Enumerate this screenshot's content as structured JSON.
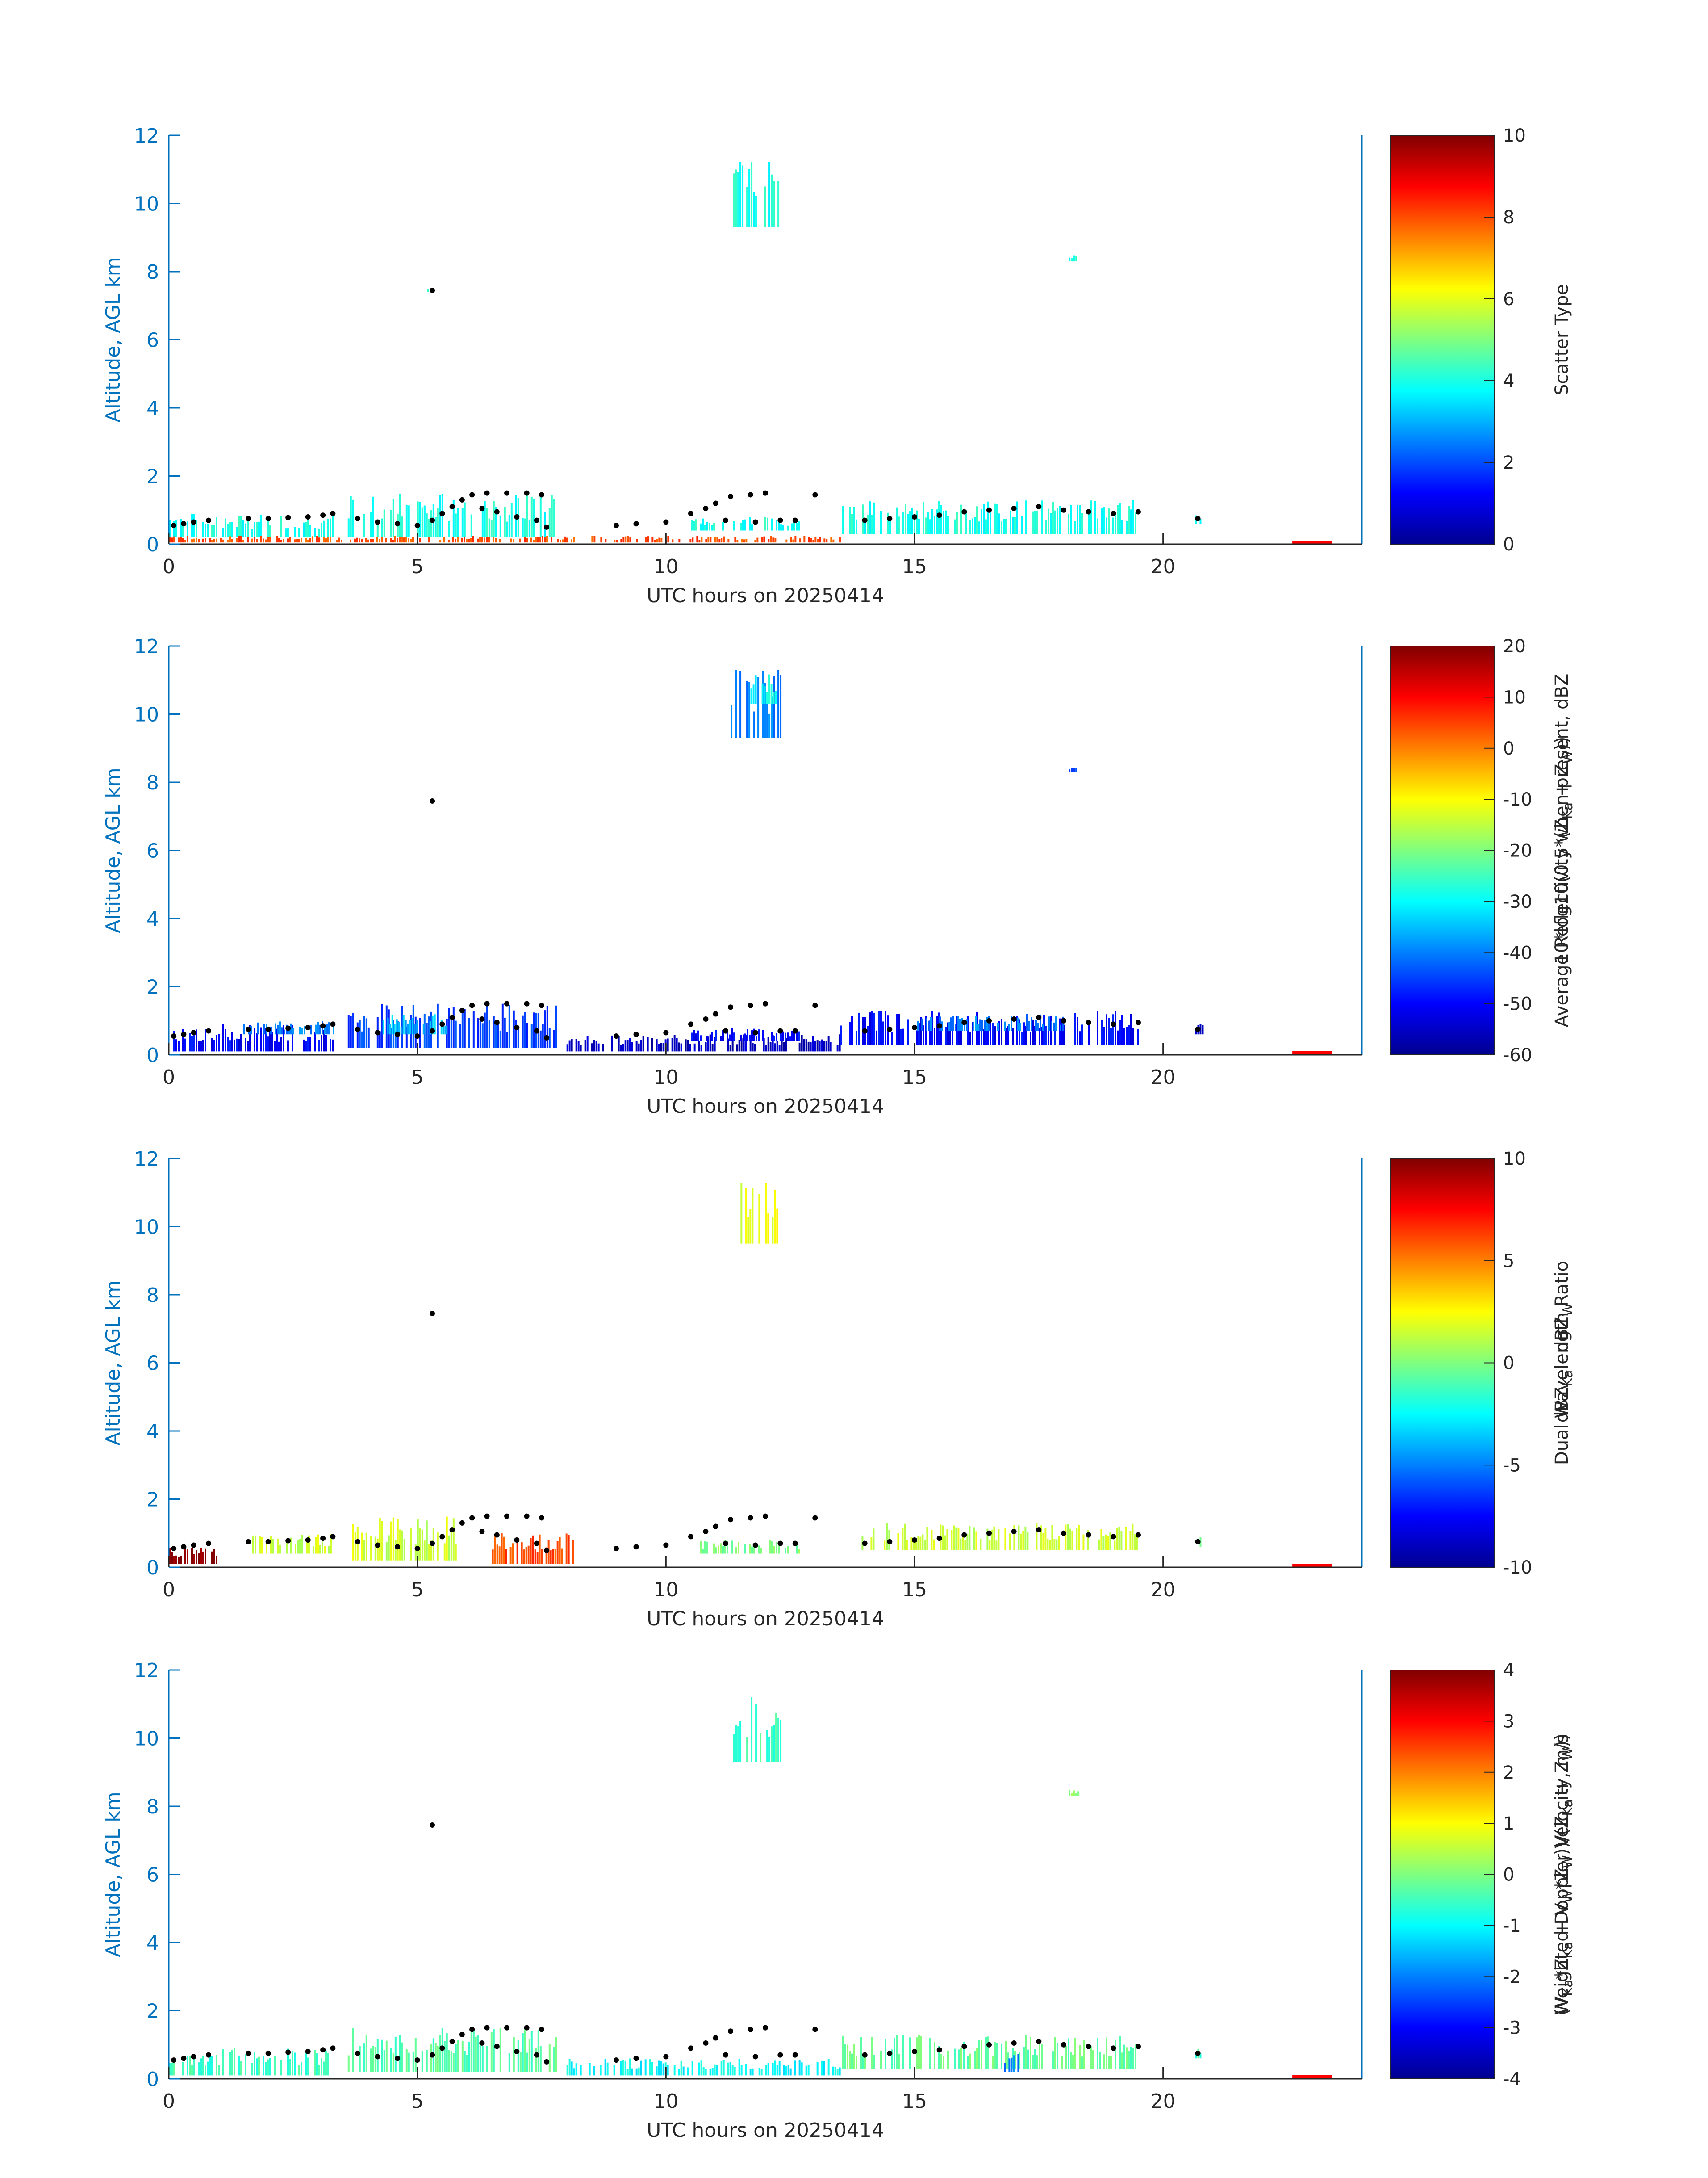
{
  "chart_data": [
    {
      "type": "heatmap",
      "xlabel": "UTC hours on 20250414",
      "ylabel": "Altitude, AGL km",
      "xlim": [
        0,
        24
      ],
      "ylim": [
        0,
        12
      ],
      "xticks": [
        "0",
        "5",
        "10",
        "15",
        "20"
      ],
      "yticks": [
        "0",
        "2",
        "4",
        "6",
        "8",
        "10",
        "12"
      ],
      "colorbar": {
        "label_lines": [
          "Scatter Type"
        ],
        "range": [
          0,
          10
        ],
        "ticks": [
          "0",
          "2",
          "4",
          "6",
          "8",
          "10"
        ],
        "colormap": "jet"
      },
      "field": [
        {
          "x": [
            0,
            3.3
          ],
          "y": [
            0.2,
            0.9
          ],
          "v": 4
        },
        {
          "x": [
            0,
            8.2
          ],
          "y": [
            0.05,
            0.25
          ],
          "v": 8
        },
        {
          "x": [
            3.6,
            7.8
          ],
          "y": [
            0.2,
            1.5
          ],
          "v": 4
        },
        {
          "x": [
            8.5,
            13.5
          ],
          "y": [
            0.05,
            0.25
          ],
          "v": 8
        },
        {
          "x": [
            10.5,
            12.7
          ],
          "y": [
            0.4,
            0.8
          ],
          "v": 4
        },
        {
          "x": [
            13.5,
            19.5
          ],
          "y": [
            0.3,
            1.3
          ],
          "v": 4
        },
        {
          "x": [
            11.3,
            12.3
          ],
          "y": [
            9.3,
            11.3
          ],
          "v": 4
        },
        {
          "x": [
            18.1,
            18.3
          ],
          "y": [
            8.3,
            8.5
          ],
          "v": 4
        },
        {
          "x": [
            20.6,
            20.8
          ],
          "y": [
            0.6,
            0.9
          ],
          "v": 4
        },
        {
          "x": [
            5.2,
            5.3
          ],
          "y": [
            7.4,
            7.6
          ],
          "v": 4
        },
        {
          "x": [
            22.6,
            23.4
          ],
          "y": [
            0.0,
            0.06
          ],
          "v": 10
        }
      ]
    },
    {
      "type": "heatmap",
      "xlabel": "UTC hours on 20250414",
      "ylabel": "Altitude, AGL km",
      "xlim": [
        0,
        24
      ],
      "ylim": [
        0,
        12
      ],
      "xticks": [
        "0",
        "5",
        "10",
        "15",
        "20"
      ],
      "yticks": [
        "0",
        "2",
        "4",
        "6",
        "8",
        "10",
        "12"
      ],
      "colorbar": {
        "label_lines": [
          "Average Reflectivity when present, dBZ",
          "10*log10(0.5*(Z",
          "Ka",
          " + Z",
          "W",
          "))"
        ],
        "range": [
          -60,
          20
        ],
        "ticks": [
          "-60",
          "-50",
          "-40",
          "-30",
          "-20",
          "-10",
          "0",
          "10",
          "20"
        ],
        "colormap": "jet"
      },
      "field": [
        {
          "x": [
            0,
            3.3
          ],
          "y": [
            0.1,
            0.9
          ],
          "v": -50
        },
        {
          "x": [
            1.5,
            3.3
          ],
          "y": [
            0.6,
            1.0
          ],
          "v": -40
        },
        {
          "x": [
            3.6,
            7.8
          ],
          "y": [
            0.2,
            1.5
          ],
          "v": -45
        },
        {
          "x": [
            4.3,
            5.6
          ],
          "y": [
            0.6,
            1.2
          ],
          "v": -35
        },
        {
          "x": [
            8.0,
            13.5
          ],
          "y": [
            0.1,
            0.6
          ],
          "v": -55
        },
        {
          "x": [
            10.5,
            12.7
          ],
          "y": [
            0.4,
            0.8
          ],
          "v": -50
        },
        {
          "x": [
            13.5,
            19.5
          ],
          "y": [
            0.3,
            1.3
          ],
          "v": -50
        },
        {
          "x": [
            15.0,
            18.0
          ],
          "y": [
            0.7,
            1.2
          ],
          "v": -40
        },
        {
          "x": [
            11.3,
            12.3
          ],
          "y": [
            9.3,
            11.3
          ],
          "v": -40
        },
        {
          "x": [
            11.7,
            12.2
          ],
          "y": [
            10.3,
            11.2
          ],
          "v": -30
        },
        {
          "x": [
            18.1,
            18.3
          ],
          "y": [
            8.3,
            8.5
          ],
          "v": -45
        },
        {
          "x": [
            20.6,
            20.8
          ],
          "y": [
            0.6,
            0.9
          ],
          "v": -55
        },
        {
          "x": [
            22.6,
            23.4
          ],
          "y": [
            0.0,
            0.06
          ],
          "v": 20
        }
      ]
    },
    {
      "type": "heatmap",
      "xlabel": "UTC hours on 20250414",
      "ylabel": "Altitude, AGL km",
      "xlim": [
        0,
        24
      ],
      "ylim": [
        0,
        12
      ],
      "xticks": [
        "0",
        "5",
        "10",
        "15",
        "20"
      ],
      "yticks": [
        "0",
        "2",
        "4",
        "6",
        "8",
        "10",
        "12"
      ],
      "colorbar": {
        "label_lines": [
          "Dual Wavelength Ratio",
          "dBZ",
          "Ka",
          " - dBZ",
          "W"
        ],
        "range": [
          -10,
          10
        ],
        "ticks": [
          "-10",
          "-5",
          "0",
          "5",
          "10"
        ],
        "colormap": "jet"
      },
      "field": [
        {
          "x": [
            0,
            1.0
          ],
          "y": [
            0.1,
            0.6
          ],
          "v": 10
        },
        {
          "x": [
            1.5,
            3.3
          ],
          "y": [
            0.4,
            1.0
          ],
          "v": 1.5
        },
        {
          "x": [
            3.6,
            5.8
          ],
          "y": [
            0.2,
            1.5
          ],
          "v": 1.5
        },
        {
          "x": [
            6.5,
            8.2
          ],
          "y": [
            0.1,
            1.0
          ],
          "v": 6
        },
        {
          "x": [
            10.5,
            12.7
          ],
          "y": [
            0.4,
            0.8
          ],
          "v": 0
        },
        {
          "x": [
            13.8,
            19.5
          ],
          "y": [
            0.5,
            1.3
          ],
          "v": 1.5
        },
        {
          "x": [
            11.5,
            12.3
          ],
          "y": [
            9.5,
            11.3
          ],
          "v": 2
        },
        {
          "x": [
            20.6,
            20.8
          ],
          "y": [
            0.6,
            0.9
          ],
          "v": -1
        },
        {
          "x": [
            22.6,
            23.4
          ],
          "y": [
            0.0,
            0.06
          ],
          "v": 10
        }
      ]
    },
    {
      "type": "heatmap",
      "xlabel": "UTC hours on 20250414",
      "ylabel": "Altitude, AGL km",
      "xlim": [
        0,
        24
      ],
      "ylim": [
        0,
        12
      ],
      "xticks": [
        "0",
        "5",
        "10",
        "15",
        "20"
      ],
      "yticks": [
        "0",
        "2",
        "4",
        "6",
        "8",
        "10",
        "12"
      ],
      "colorbar": {
        "label_lines": [
          "Weighted Doppler Velocity, m/s",
          "(V",
          "Ka",
          "*Z",
          "Ka",
          " + V",
          "W",
          "*Z",
          "W",
          "))/(Z",
          "Ka",
          " + Z",
          "W",
          "))"
        ],
        "range": [
          -4,
          4
        ],
        "ticks": [
          "-4",
          "-3",
          "-2",
          "-1",
          "0",
          "1",
          "2",
          "3",
          "4"
        ],
        "colormap": "jet"
      },
      "field": [
        {
          "x": [
            0,
            3.3
          ],
          "y": [
            0.1,
            0.9
          ],
          "v": -0.5
        },
        {
          "x": [
            3.6,
            7.8
          ],
          "y": [
            0.2,
            1.5
          ],
          "v": -0.3
        },
        {
          "x": [
            8.0,
            13.5
          ],
          "y": [
            0.1,
            0.6
          ],
          "v": -1.0
        },
        {
          "x": [
            13.5,
            19.5
          ],
          "y": [
            0.3,
            1.3
          ],
          "v": -0.2
        },
        {
          "x": [
            16.8,
            17.1
          ],
          "y": [
            0.2,
            0.8
          ],
          "v": -2.0
        },
        {
          "x": [
            11.3,
            12.3
          ],
          "y": [
            9.3,
            11.3
          ],
          "v": -0.5
        },
        {
          "x": [
            18.1,
            18.3
          ],
          "y": [
            8.3,
            8.5
          ],
          "v": 0
        },
        {
          "x": [
            20.6,
            20.8
          ],
          "y": [
            0.6,
            0.9
          ],
          "v": -0.5
        },
        {
          "x": [
            22.6,
            23.4
          ],
          "y": [
            0.0,
            0.06
          ],
          "v": 4
        }
      ]
    }
  ],
  "cloud_base_points": [
    [
      0.1,
      0.55
    ],
    [
      0.3,
      0.6
    ],
    [
      0.5,
      0.65
    ],
    [
      0.8,
      0.7
    ],
    [
      1.6,
      0.75
    ],
    [
      2.0,
      0.75
    ],
    [
      2.4,
      0.78
    ],
    [
      2.8,
      0.8
    ],
    [
      3.1,
      0.85
    ],
    [
      3.3,
      0.9
    ],
    [
      3.8,
      0.75
    ],
    [
      4.2,
      0.65
    ],
    [
      4.6,
      0.6
    ],
    [
      5.0,
      0.55
    ],
    [
      5.3,
      0.7
    ],
    [
      5.5,
      0.9
    ],
    [
      5.7,
      1.1
    ],
    [
      5.9,
      1.3
    ],
    [
      6.1,
      1.45
    ],
    [
      6.4,
      1.5
    ],
    [
      6.8,
      1.5
    ],
    [
      7.2,
      1.5
    ],
    [
      7.5,
      1.45
    ],
    [
      6.3,
      1.05
    ],
    [
      6.6,
      0.95
    ],
    [
      7.0,
      0.8
    ],
    [
      7.4,
      0.7
    ],
    [
      7.6,
      0.5
    ],
    [
      9.0,
      0.55
    ],
    [
      9.4,
      0.6
    ],
    [
      10.0,
      0.65
    ],
    [
      10.5,
      0.9
    ],
    [
      10.8,
      1.05
    ],
    [
      11.0,
      1.2
    ],
    [
      11.3,
      1.4
    ],
    [
      11.7,
      1.45
    ],
    [
      12.0,
      1.5
    ],
    [
      11.2,
      0.7
    ],
    [
      11.8,
      0.65
    ],
    [
      12.3,
      0.7
    ],
    [
      12.6,
      0.7
    ],
    [
      13.0,
      1.45
    ],
    [
      14.0,
      0.7
    ],
    [
      14.5,
      0.75
    ],
    [
      15.0,
      0.8
    ],
    [
      15.5,
      0.85
    ],
    [
      16.0,
      0.95
    ],
    [
      16.5,
      1.0
    ],
    [
      17.0,
      1.05
    ],
    [
      17.5,
      1.1
    ],
    [
      18.0,
      1.0
    ],
    [
      18.5,
      0.95
    ],
    [
      19.0,
      0.9
    ],
    [
      19.5,
      0.95
    ],
    [
      20.7,
      0.75
    ],
    [
      5.3,
      7.45
    ]
  ],
  "red_marker_range": [
    22.6,
    23.4
  ]
}
